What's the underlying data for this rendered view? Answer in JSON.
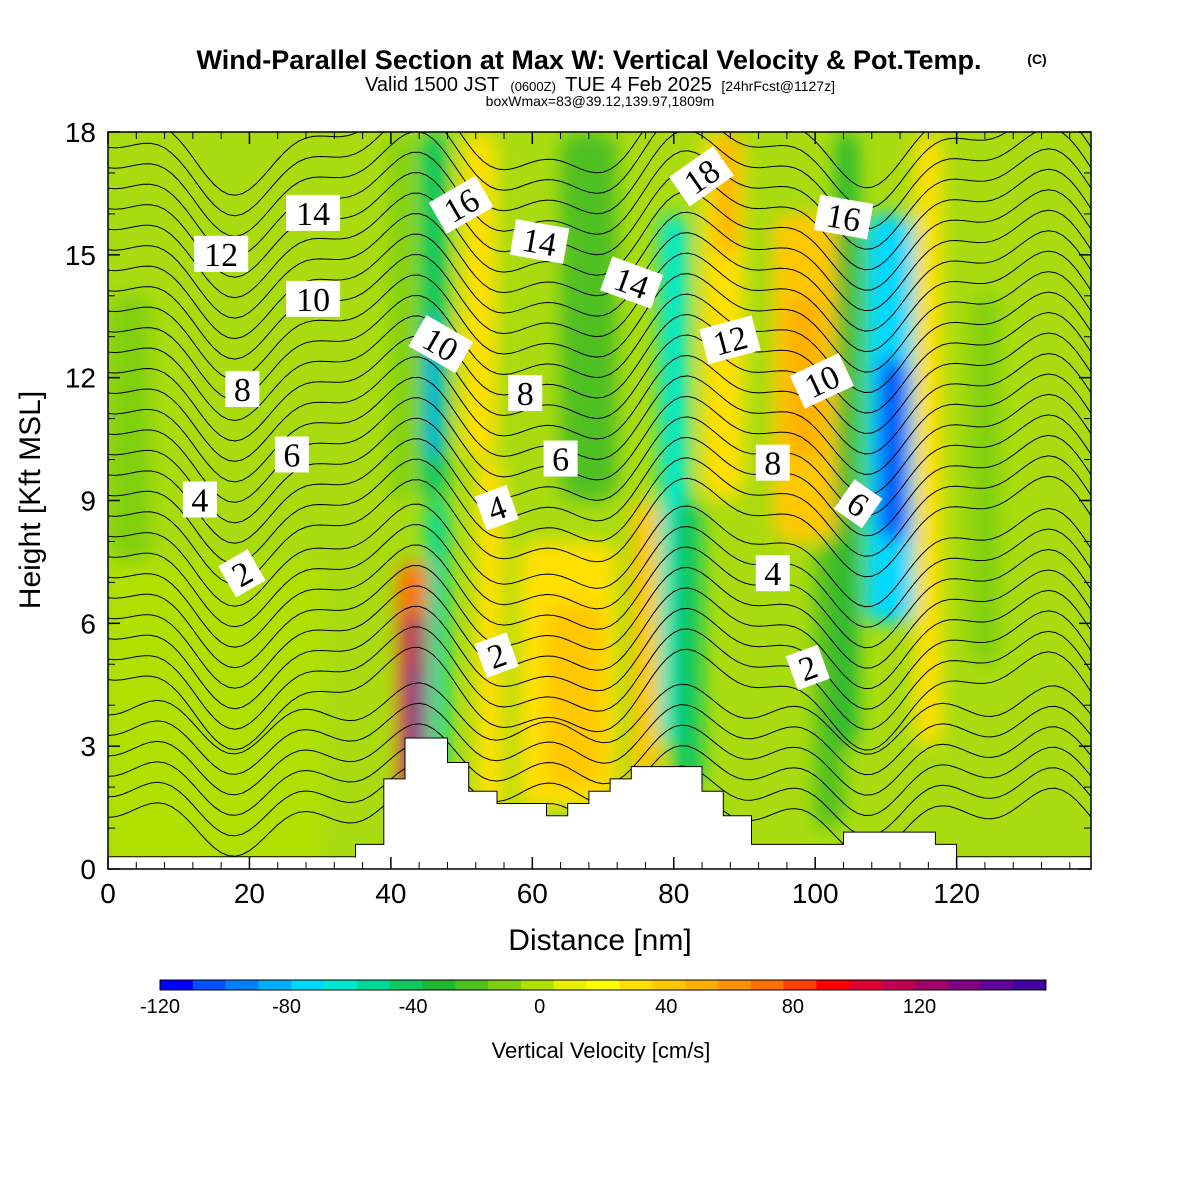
{
  "chart_data": {
    "type": "heatmap",
    "title": "Wind-Parallel Section at Max W: Vertical Velocity & Pot.Temp.",
    "title_mark": "(C)",
    "subtitle_parts": [
      "Valid 1500 JST",
      "(0600Z)",
      "TUE 4 Feb 2025",
      "[24hrFcst@1127z]"
    ],
    "subtitle2": "boxWmax=83@39.12,139.97,1809m",
    "xlabel": "Distance [nm]",
    "ylabel": "Height [Kft MSL]",
    "xlim": [
      0,
      139
    ],
    "ylim": [
      0,
      18
    ],
    "x_ticks": [
      0,
      20,
      40,
      60,
      80,
      100,
      120
    ],
    "y_ticks": [
      0,
      3,
      6,
      9,
      12,
      15,
      18
    ],
    "colorbar": {
      "label": "Vertical Velocity [cm/s]",
      "min": -120,
      "max": 150,
      "step": 10,
      "ticks": [
        -120,
        -80,
        -40,
        0,
        40,
        80,
        120
      ],
      "colors": [
        "#0000ff",
        "#0050ff",
        "#0080ff",
        "#00b0ff",
        "#00d8ff",
        "#00e8d0",
        "#00d898",
        "#10c860",
        "#20b830",
        "#50c020",
        "#80d010",
        "#b0e000",
        "#e8f000",
        "#ffff00",
        "#ffe000",
        "#ffc800",
        "#ffb000",
        "#ff9000",
        "#ff7000",
        "#ff4000",
        "#ff0000",
        "#e00030",
        "#c00050",
        "#a00068",
        "#800080",
        "#600098",
        "#4000a0"
      ]
    },
    "vertical_velocity_features": [
      {
        "x": 43,
        "y": 4.5,
        "peak": 140,
        "comment_free": true
      },
      {
        "x": 46,
        "y": 11.5,
        "peak": -90
      },
      {
        "x": 52,
        "y": 15,
        "peak": 30
      },
      {
        "x": 64,
        "y": 5,
        "peak": 30
      },
      {
        "x": 68,
        "y": 12,
        "peak": -40
      },
      {
        "x": 79,
        "y": 11,
        "peak": -80
      },
      {
        "x": 88,
        "y": 15,
        "peak": 30
      },
      {
        "x": 98,
        "y": 12,
        "peak": 40
      },
      {
        "x": 110,
        "y": 10,
        "peak": -110
      }
    ],
    "terrain": {
      "x": [
        0,
        35,
        35,
        39,
        39,
        42,
        42,
        48,
        48,
        51,
        51,
        55,
        55,
        62,
        62,
        65,
        65,
        68,
        68,
        71,
        71,
        74,
        74,
        77,
        77,
        84,
        84,
        87,
        87,
        91,
        91,
        104,
        104,
        117,
        117,
        120,
        120,
        139
      ],
      "height": [
        0.3,
        0.3,
        0.6,
        0.6,
        2.2,
        2.2,
        3.2,
        3.2,
        2.6,
        2.6,
        1.9,
        1.9,
        1.6,
        1.6,
        1.3,
        1.3,
        1.6,
        1.6,
        1.9,
        1.9,
        2.2,
        2.2,
        2.5,
        2.5,
        2.5,
        2.5,
        1.9,
        1.9,
        1.3,
        1.3,
        0.6,
        0.6,
        0.9,
        0.9,
        0.6,
        0.6,
        0.3,
        0.3
      ]
    },
    "pot_temp_labels": [
      {
        "text": "14",
        "x": 29,
        "y": 16.0,
        "rot": 0
      },
      {
        "text": "12",
        "x": 16,
        "y": 15.0,
        "rot": 0
      },
      {
        "text": "10",
        "x": 29,
        "y": 13.9,
        "rot": 0
      },
      {
        "text": "8",
        "x": 19,
        "y": 11.7,
        "rot": 0
      },
      {
        "text": "6",
        "x": 26,
        "y": 10.1,
        "rot": 0
      },
      {
        "text": "4",
        "x": 13,
        "y": 9.0,
        "rot": 0
      },
      {
        "text": "2",
        "x": 19,
        "y": 7.2,
        "rot": -30
      },
      {
        "text": "16",
        "x": 50,
        "y": 16.2,
        "rot": -30
      },
      {
        "text": "10",
        "x": 47,
        "y": 12.8,
        "rot": 30
      },
      {
        "text": "14",
        "x": 61,
        "y": 15.3,
        "rot": 10
      },
      {
        "text": "8",
        "x": 59,
        "y": 11.6,
        "rot": 0
      },
      {
        "text": "6",
        "x": 64,
        "y": 10.0,
        "rot": 0
      },
      {
        "text": "4",
        "x": 55,
        "y": 8.8,
        "rot": -20
      },
      {
        "text": "2",
        "x": 55,
        "y": 5.2,
        "rot": -20
      },
      {
        "text": "18",
        "x": 84,
        "y": 16.9,
        "rot": -35
      },
      {
        "text": "14",
        "x": 74,
        "y": 14.3,
        "rot": 20
      },
      {
        "text": "12",
        "x": 88,
        "y": 12.9,
        "rot": -15
      },
      {
        "text": "16",
        "x": 104,
        "y": 15.9,
        "rot": 10
      },
      {
        "text": "10",
        "x": 101,
        "y": 11.9,
        "rot": -25
      },
      {
        "text": "8",
        "x": 94,
        "y": 9.9,
        "rot": 0
      },
      {
        "text": "6",
        "x": 106,
        "y": 8.9,
        "rot": 35
      },
      {
        "text": "4",
        "x": 94,
        "y": 7.2,
        "rot": 0
      },
      {
        "text": "2",
        "x": 99,
        "y": 4.9,
        "rot": -20
      }
    ]
  }
}
